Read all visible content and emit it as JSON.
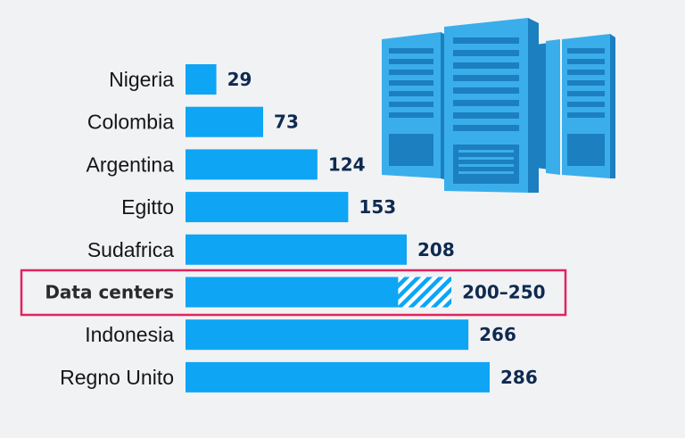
{
  "chart_data": {
    "type": "bar",
    "orientation": "horizontal",
    "categories": [
      "Nigeria",
      "Colombia",
      "Argentina",
      "Egitto",
      "Sudafrica",
      "Data centers",
      "Indonesia",
      "Regno Unito"
    ],
    "values": [
      29,
      73,
      124,
      153,
      208,
      225,
      266,
      286
    ],
    "value_labels": [
      "29",
      "73",
      "124",
      "153",
      "208",
      "200–250",
      "266",
      "286"
    ],
    "highlight": {
      "category": "Data centers",
      "range": [
        200,
        250
      ],
      "label": "200–250",
      "border_color": "#e0245e"
    },
    "xlim": [
      0,
      286
    ],
    "grid": false,
    "legend": "none",
    "title": "",
    "xlabel": "",
    "ylabel": ""
  },
  "colors": {
    "bar": "#0ea5f5",
    "hatch": "#0ea5f5",
    "server_light": "#3aaeea",
    "server_dark": "#1c7fbf",
    "highlight_border": "#e0245e"
  },
  "illustration": {
    "icon": "server-racks-icon"
  }
}
